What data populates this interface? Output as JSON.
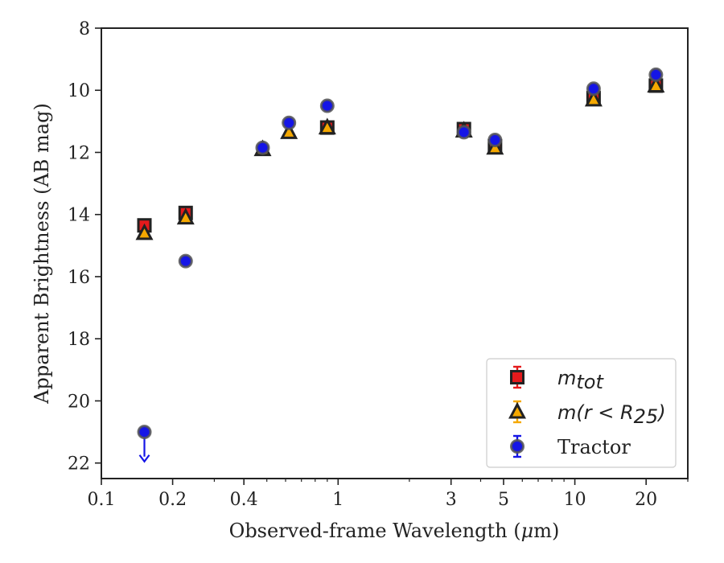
{
  "chart_data": {
    "type": "scatter",
    "xlabel_parts": {
      "before": "Observed-frame Wavelength (",
      "mu": "μ",
      "after": "m)"
    },
    "ylabel": "Apparent Brightness (AB mag)",
    "xscale": "log",
    "xlim": [
      0.1,
      30
    ],
    "ylim": [
      22.5,
      8
    ],
    "x_ticks": [
      {
        "value": 0.1,
        "label": "0.1"
      },
      {
        "value": 0.2,
        "label": "0.2"
      },
      {
        "value": 0.4,
        "label": "0.4"
      },
      {
        "value": 1,
        "label": "1"
      },
      {
        "value": 3,
        "label": "3"
      },
      {
        "value": 5,
        "label": "5"
      },
      {
        "value": 10,
        "label": "10"
      },
      {
        "value": 20,
        "label": "20"
      }
    ],
    "y_ticks": [
      {
        "value": 8,
        "label": "8"
      },
      {
        "value": 10,
        "label": "10"
      },
      {
        "value": 12,
        "label": "12"
      },
      {
        "value": 14,
        "label": "14"
      },
      {
        "value": 16,
        "label": "16"
      },
      {
        "value": 18,
        "label": "18"
      },
      {
        "value": 20,
        "label": "20"
      },
      {
        "value": 22,
        "label": "22"
      }
    ],
    "grid": false,
    "legend_position": "bottom-right",
    "legend": [
      {
        "marker": "square",
        "math": "m",
        "sub": "tot",
        "rest": ""
      },
      {
        "marker": "triangle",
        "math": "m(r < R",
        "sub": "25",
        "rest": ")"
      },
      {
        "marker": "circle",
        "math": "",
        "sub": "",
        "rest": "Tractor"
      }
    ],
    "series": [
      {
        "marker": "square",
        "face_color": "#e41a1c",
        "edge_color": "#222222",
        "error_color": "#e41a1c",
        "points": [
          {
            "x": 0.152,
            "y": 14.35
          },
          {
            "x": 0.227,
            "y": 13.95
          },
          {
            "x": 0.9,
            "y": 11.2
          },
          {
            "x": 3.4,
            "y": 11.25
          },
          {
            "x": 4.6,
            "y": 11.8
          },
          {
            "x": 12.0,
            "y": 10.25
          },
          {
            "x": 22.0,
            "y": 9.85
          }
        ]
      },
      {
        "marker": "triangle",
        "face_color": "#f5a800",
        "edge_color": "#222222",
        "error_color": "#f5a800",
        "points": [
          {
            "x": 0.152,
            "y": 14.6
          },
          {
            "x": 0.227,
            "y": 14.1
          },
          {
            "x": 0.48,
            "y": 11.9
          },
          {
            "x": 0.62,
            "y": 11.35
          },
          {
            "x": 0.9,
            "y": 11.2
          },
          {
            "x": 3.4,
            "y": 11.3
          },
          {
            "x": 4.6,
            "y": 11.85
          },
          {
            "x": 12.0,
            "y": 10.3
          },
          {
            "x": 22.0,
            "y": 9.85
          }
        ]
      },
      {
        "marker": "circle",
        "face_color": "#1515e6",
        "edge_color": "#555555",
        "error_color": "#1515e6",
        "points": [
          {
            "x": 0.227,
            "y": 15.5
          },
          {
            "x": 0.48,
            "y": 11.85
          },
          {
            "x": 0.62,
            "y": 11.05
          },
          {
            "x": 0.9,
            "y": 10.5
          },
          {
            "x": 3.4,
            "y": 11.35
          },
          {
            "x": 4.6,
            "y": 11.6
          },
          {
            "x": 12.0,
            "y": 9.95
          },
          {
            "x": 22.0,
            "y": 9.5
          }
        ],
        "upper_limits": [
          {
            "x": 0.152,
            "y": 21.0,
            "arrow_to": 21.95
          }
        ]
      }
    ]
  }
}
